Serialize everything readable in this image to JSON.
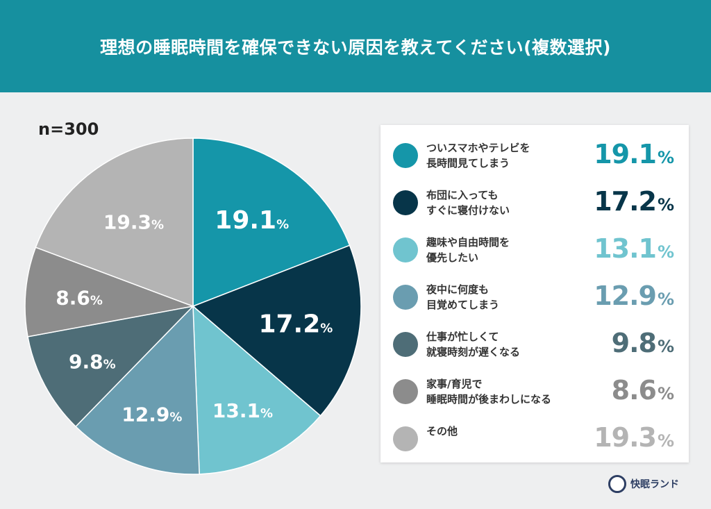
{
  "title": "理想の睡眠時間を確保できない原因を教えてください(複数選択)",
  "sample": "n=300",
  "brand": "快眠ランド",
  "chart_data": {
    "type": "pie",
    "title": "理想の睡眠時間を確保できない原因を教えてください(複数選択)",
    "unit": "%",
    "start": "12 o'clock, clockwise",
    "slices": [
      {
        "label": "ついスマホやテレビを\n長時間見てしまう",
        "value": 19.1,
        "display": "19.1",
        "color": "#1596a9"
      },
      {
        "label": "布団に入っても\nすぐに寝付けない",
        "value": 17.2,
        "display": "17.2",
        "color": "#073549"
      },
      {
        "label": "趣味や自由時間を\n優先したい",
        "value": 13.1,
        "display": "13.1",
        "color": "#70c4cf"
      },
      {
        "label": "夜中に何度も\n目覚めてしまう",
        "value": 12.9,
        "display": "12.9",
        "color": "#6a9db0"
      },
      {
        "label": "仕事が忙しくて\n就寝時刻が遅くなる",
        "value": 9.8,
        "display": "9.8",
        "color": "#4e6d77"
      },
      {
        "label": "家事/育児で\n睡眠時間が後まわしになる",
        "value": 8.6,
        "display": "8.6",
        "color": "#8c8c8c"
      },
      {
        "label": "その他",
        "value": 19.3,
        "display": "19.3",
        "color": "#b4b4b4"
      }
    ]
  }
}
